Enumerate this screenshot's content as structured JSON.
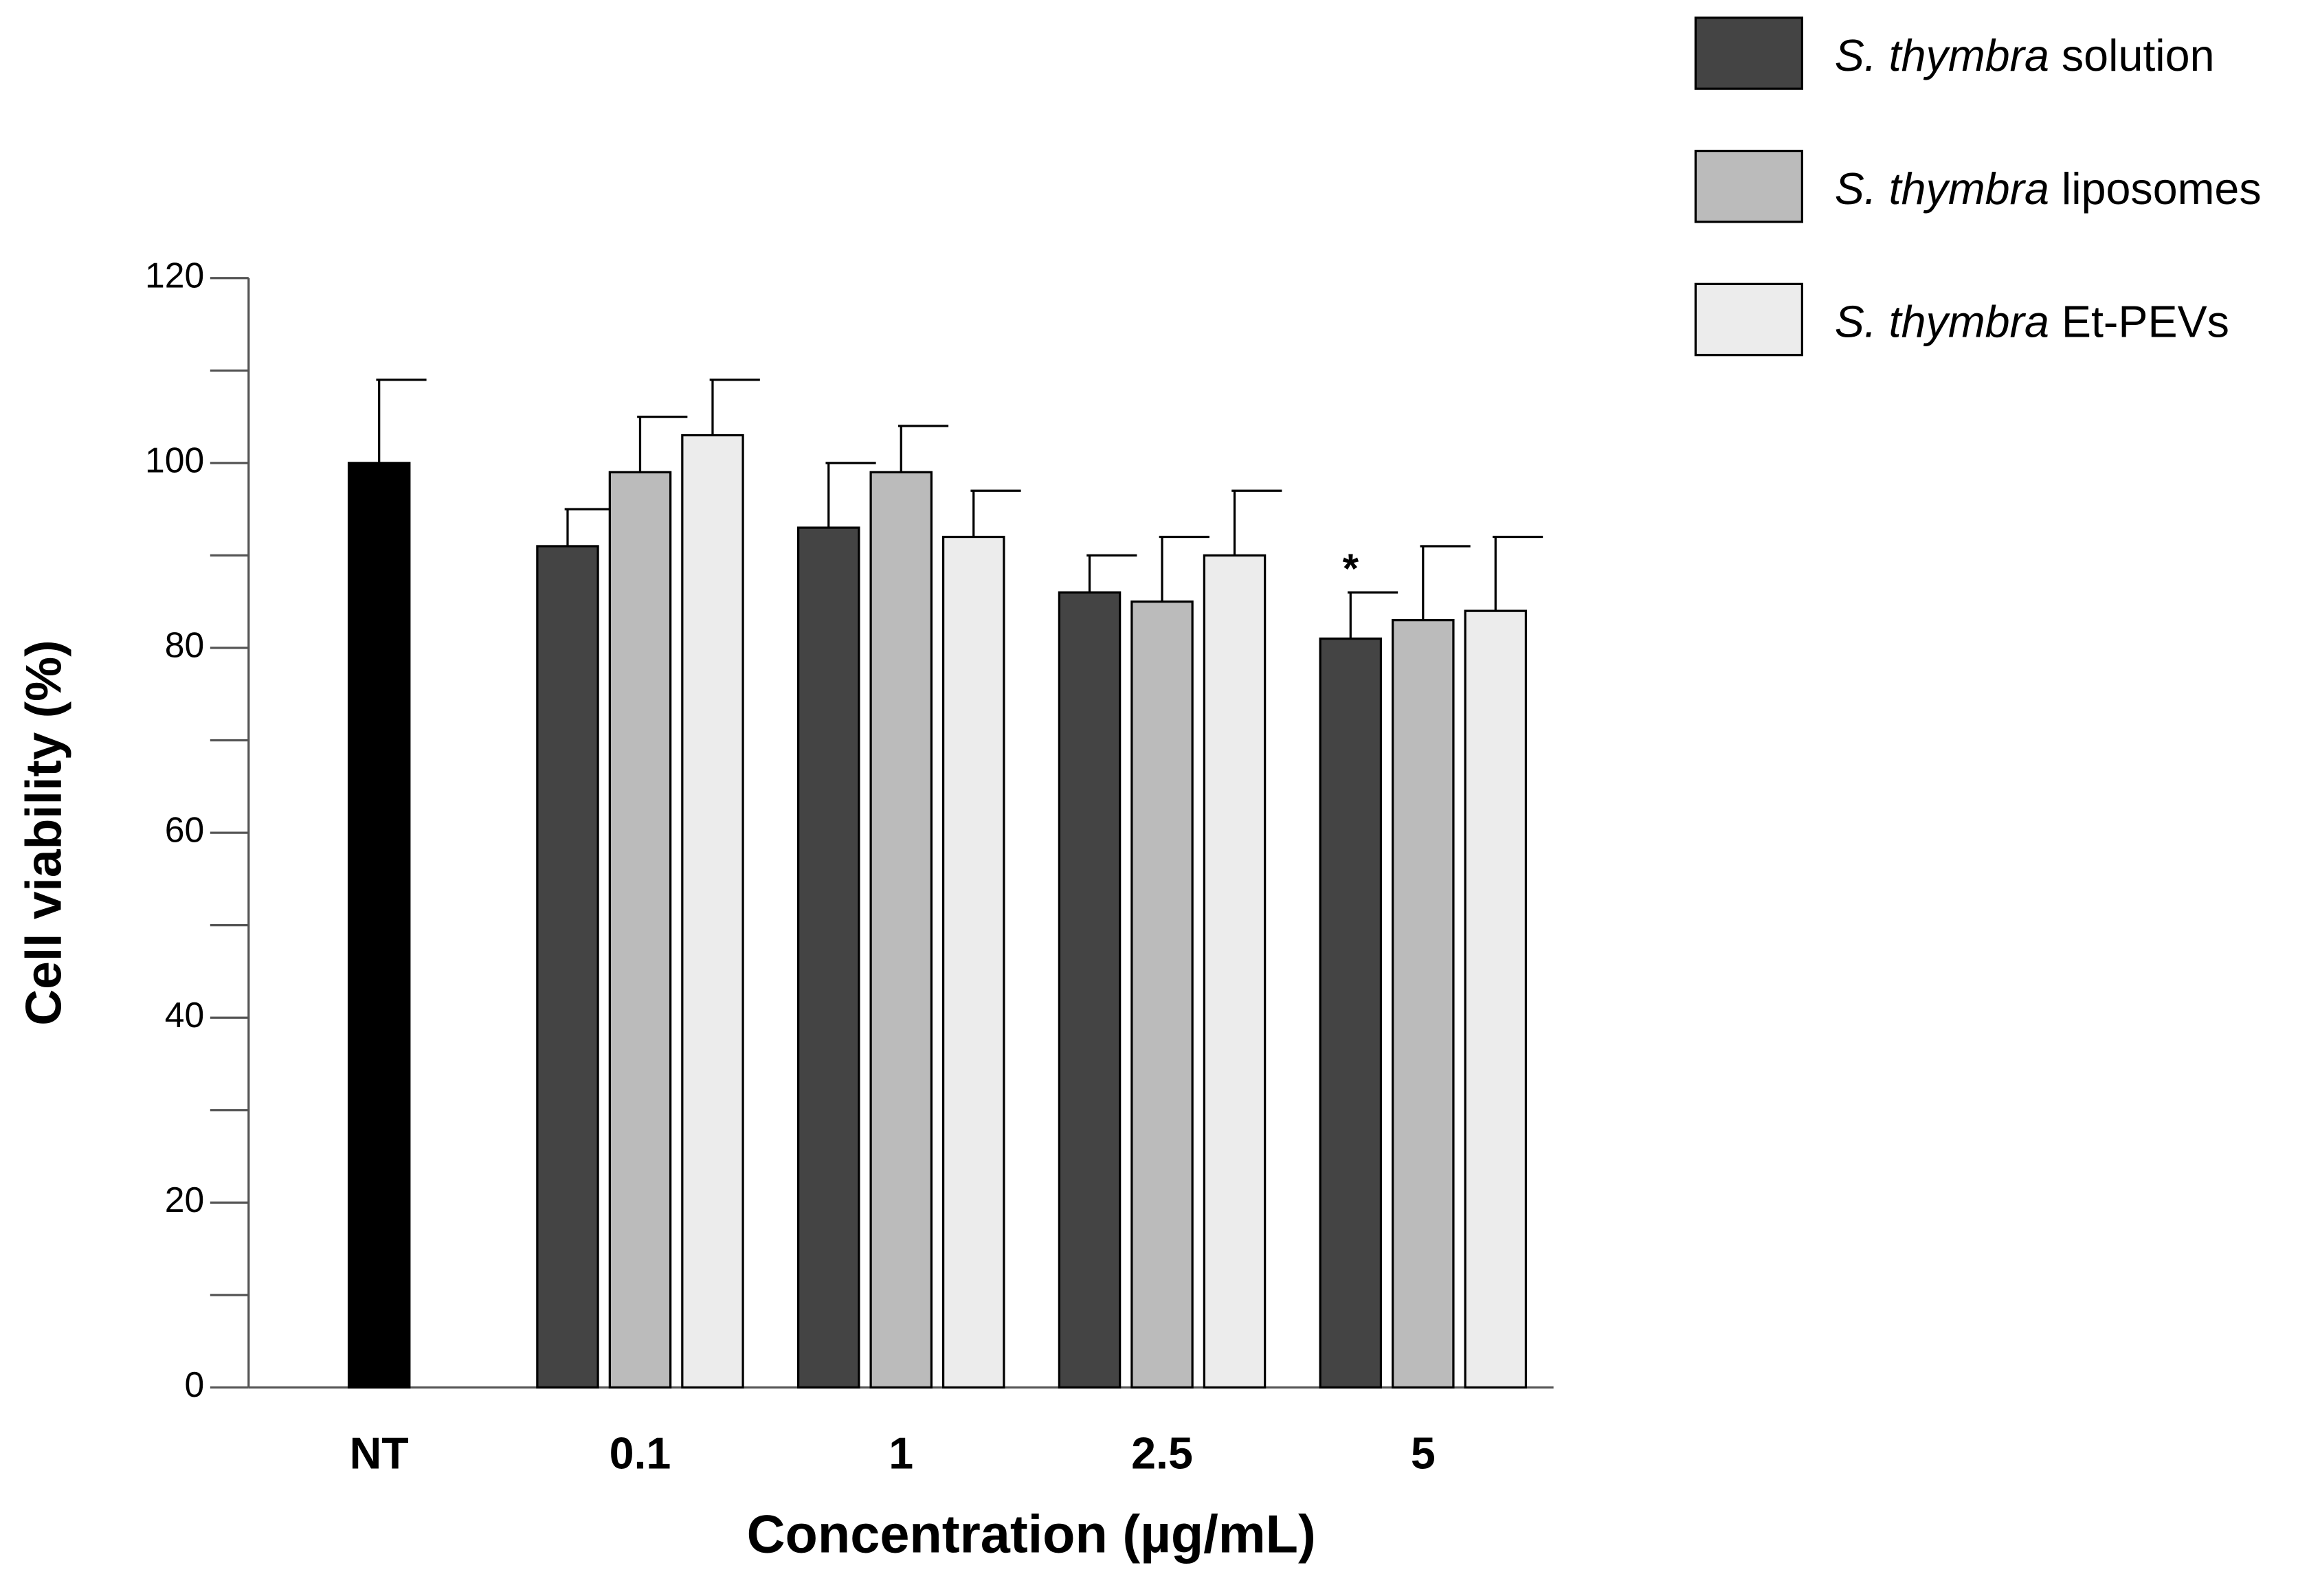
{
  "chart_data": {
    "type": "bar",
    "x_label": "Concentration (µg/mL)",
    "y_label": "Cell viability (%)",
    "categories": [
      "NT",
      "0.1",
      "1",
      "2.5",
      "5"
    ],
    "control": {
      "color": "#000000",
      "values": [
        100
      ],
      "errors": [
        9
      ]
    },
    "series": [
      {
        "name": "S. thymbra solution",
        "color": "#444444",
        "values": [
          null,
          91,
          93,
          86,
          81
        ],
        "errors": [
          null,
          4,
          7,
          4,
          5
        ],
        "marks": [
          null,
          null,
          null,
          null,
          "*"
        ]
      },
      {
        "name": "S. thymbra liposomes",
        "color": "#bbbbbb",
        "values": [
          null,
          99,
          99,
          85,
          83
        ],
        "errors": [
          null,
          6,
          5,
          7,
          8
        ]
      },
      {
        "name": "S. thymbra Et-PEVs",
        "color": "#ececec",
        "values": [
          null,
          103,
          92,
          90,
          84
        ],
        "errors": [
          null,
          6,
          5,
          7,
          8
        ]
      }
    ],
    "ylim": [
      0,
      120
    ],
    "yticks": [
      0,
      20,
      40,
      60,
      80,
      100,
      120
    ]
  }
}
